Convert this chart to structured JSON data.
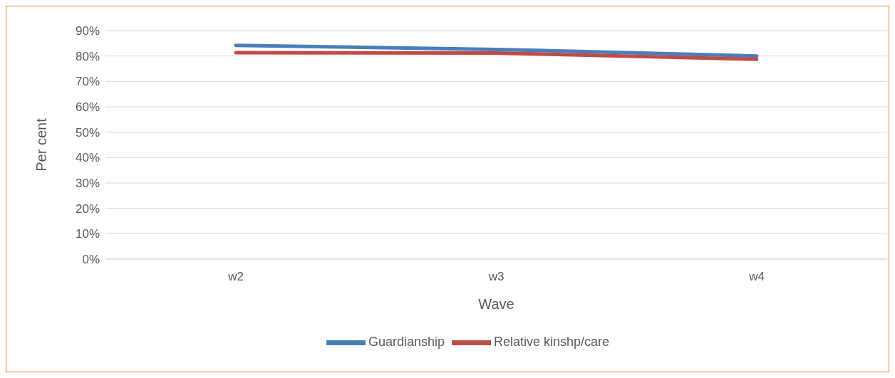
{
  "chart_data": {
    "type": "line",
    "xlabel": "Wave",
    "ylabel": "Per cent",
    "categories": [
      "w2",
      "w3",
      "w4"
    ],
    "series": [
      {
        "name": "Guardianship",
        "color": "#4a7ebb",
        "values": [
          84.2,
          82.6,
          80.0
        ]
      },
      {
        "name": "Relative kinshp/care",
        "color": "#be4b48",
        "values": [
          81.3,
          81.2,
          78.7
        ]
      }
    ],
    "ylim": [
      0,
      90
    ],
    "yticks": [
      {
        "value": 0,
        "label": "0%"
      },
      {
        "value": 10,
        "label": "10%"
      },
      {
        "value": 20,
        "label": "20%"
      },
      {
        "value": 30,
        "label": "30%"
      },
      {
        "value": 40,
        "label": "40%"
      },
      {
        "value": 50,
        "label": "50%"
      },
      {
        "value": 60,
        "label": "60%"
      },
      {
        "value": 70,
        "label": "70%"
      },
      {
        "value": 80,
        "label": "80%"
      },
      {
        "value": 90,
        "label": "90%"
      }
    ],
    "grid": "y",
    "legend": "bottom",
    "marker": "none",
    "line_style": "solid"
  }
}
